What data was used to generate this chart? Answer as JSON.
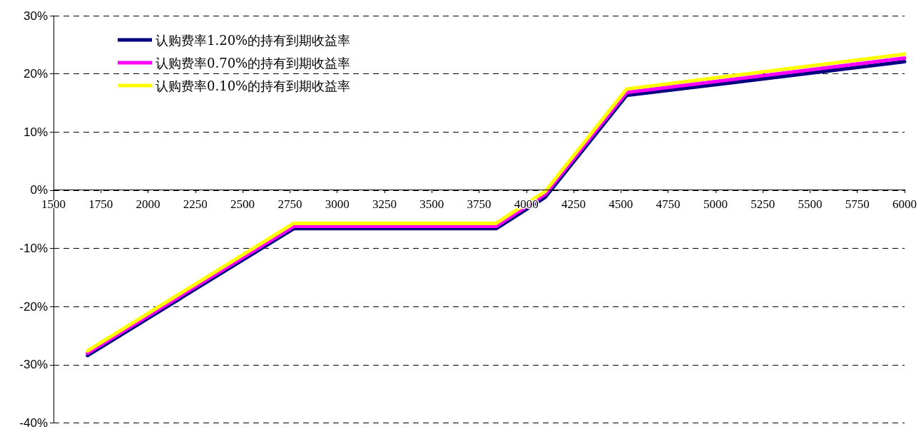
{
  "chart_data": {
    "type": "line",
    "x": [
      1680,
      2770,
      3840,
      4100,
      4530,
      6000
    ],
    "series": [
      {
        "name": "认购费率1.20%的持有到期收益率",
        "color": "#000080",
        "values": [
          -28.4,
          -6.6,
          -6.6,
          -1.2,
          16.3,
          22.1
        ]
      },
      {
        "name": "认购费率0.70%的持有到期收益率",
        "color": "#ff00ff",
        "values": [
          -28.0,
          -6.2,
          -6.2,
          -0.7,
          16.8,
          22.7
        ]
      },
      {
        "name": "认购费率0.10%的持有到期收益率",
        "color": "#ffff00",
        "values": [
          -27.6,
          -5.7,
          -5.7,
          -0.2,
          17.4,
          23.4
        ]
      }
    ],
    "xlim": [
      1500,
      6000
    ],
    "xticks": [
      1500,
      1750,
      2000,
      2250,
      2500,
      2750,
      3000,
      3250,
      3500,
      3750,
      4000,
      4250,
      4500,
      4750,
      5000,
      5250,
      5500,
      5750,
      6000
    ],
    "ylim": [
      -40,
      30
    ],
    "yticks": [
      {
        "value": -40,
        "label": "-40%"
      },
      {
        "value": -30,
        "label": "-30%"
      },
      {
        "value": -20,
        "label": "-20%"
      },
      {
        "value": -10,
        "label": "-10%"
      },
      {
        "value": 0,
        "label": "0%"
      },
      {
        "value": 10,
        "label": "10%"
      },
      {
        "value": 20,
        "label": "20%"
      },
      {
        "value": 30,
        "label": "30%"
      }
    ],
    "grid": "y",
    "legend": "top left",
    "marker": "none",
    "line_style": "solid"
  }
}
